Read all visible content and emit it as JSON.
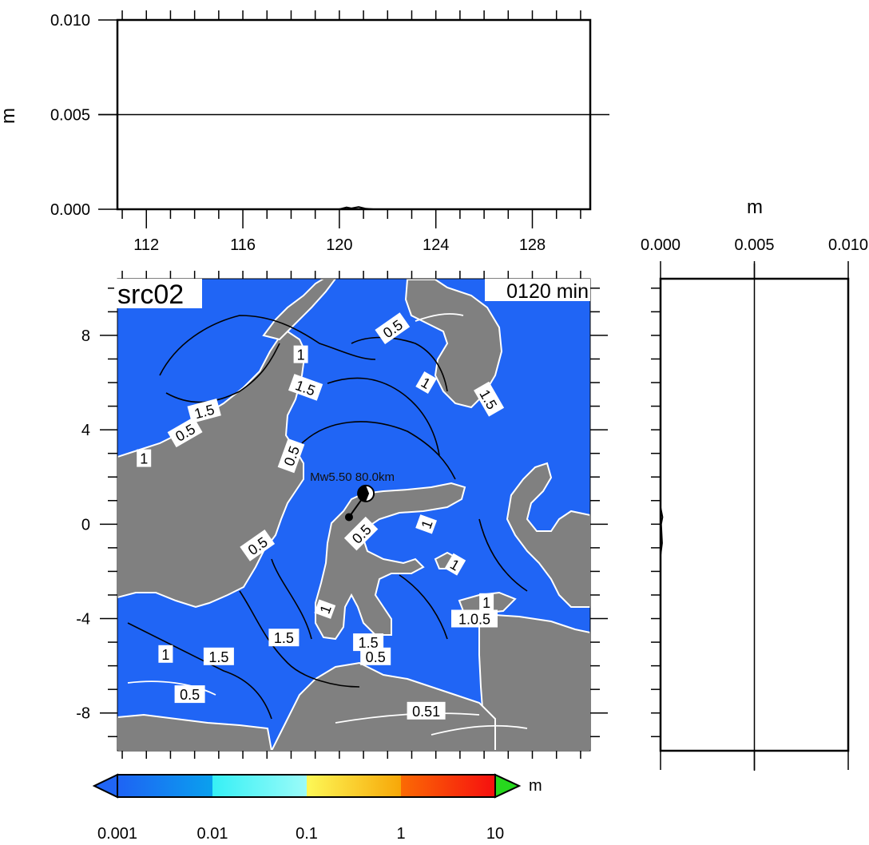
{
  "colors": {
    "ocean": "#2065F5",
    "land": "#808080",
    "contour": "#000000",
    "coast": "#FFFFFF",
    "cbar_stops": [
      "#1E63F4",
      "#0AA0EE",
      "#36F0F5",
      "#9BFBF9",
      "#FDF857",
      "#F7A708",
      "#FB6A04",
      "#F60F0F",
      "#27D81E"
    ]
  },
  "chart_data": [
    {
      "type": "line",
      "panel": "top-timeseries",
      "xlabel": "",
      "ylabel": "m",
      "xlim": [
        110.8,
        130.4
      ],
      "ylim": [
        0.0,
        0.01
      ],
      "x_ticks": [
        112,
        116,
        120,
        124,
        128
      ],
      "x_tick_labels": [
        "112",
        "116",
        "120",
        "124",
        "128"
      ],
      "y_ticks": [
        0.0,
        0.005,
        0.01
      ],
      "y_tick_labels": [
        "0.000",
        "0.005",
        "0.010"
      ],
      "series": [
        {
          "x": [
            110.8,
            120.0,
            120.3,
            120.5,
            120.8,
            121.1,
            121.4,
            130.4
          ],
          "y": [
            0.0,
            0.0,
            0.0001,
            5e-05,
            0.00012,
            3e-05,
            0.0,
            0.0
          ]
        }
      ],
      "grid": "horizontal line at 0.005"
    },
    {
      "type": "heatmap",
      "panel": "main-map",
      "title_left": "src02",
      "title_right": "0120 min",
      "xlim": [
        110.8,
        130.4
      ],
      "ylim": [
        -9.6,
        10.4
      ],
      "y_ticks": [
        8,
        4,
        0,
        -4,
        -8
      ],
      "y_tick_labels": [
        "8",
        "4",
        "0",
        "-4",
        "-8"
      ],
      "source_label": "Mw5.50  80.0km",
      "source_lon": 121.1,
      "source_lat": 1.3,
      "epicenter_lon": 120.4,
      "epicenter_lat": 0.3,
      "contour_labels": [
        {
          "text": "0.5",
          "lon": 122.2,
          "lat": 8.3,
          "angle": -35
        },
        {
          "text": "1",
          "lon": 118.4,
          "lat": 7.2,
          "angle": 0
        },
        {
          "text": "1.5",
          "lon": 118.6,
          "lat": 5.8,
          "angle": 20
        },
        {
          "text": "1",
          "lon": 123.6,
          "lat": 6.0,
          "angle": 30
        },
        {
          "text": "1.5",
          "lon": 126.2,
          "lat": 5.3,
          "angle": 60
        },
        {
          "text": "1.5",
          "lon": 114.4,
          "lat": 4.8,
          "angle": -15
        },
        {
          "text": "0.5",
          "lon": 113.6,
          "lat": 3.9,
          "angle": -30
        },
        {
          "text": "1",
          "lon": 111.9,
          "lat": 2.8,
          "angle": 0
        },
        {
          "text": "0.5",
          "lon": 118.0,
          "lat": 2.9,
          "angle": -70
        },
        {
          "text": "0.5",
          "lon": 120.9,
          "lat": -0.4,
          "angle": -45
        },
        {
          "text": "1",
          "lon": 123.6,
          "lat": 0.0,
          "angle": -70
        },
        {
          "text": "0.5",
          "lon": 116.6,
          "lat": -0.9,
          "angle": -35
        },
        {
          "text": "1",
          "lon": 124.8,
          "lat": -1.7,
          "angle": 30
        },
        {
          "text": "1",
          "lon": 119.4,
          "lat": -3.6,
          "angle": -70
        },
        {
          "text": "1.5",
          "lon": 117.7,
          "lat": -4.8,
          "angle": 0
        },
        {
          "text": "1",
          "lon": 126.1,
          "lat": -3.3,
          "angle": 0
        },
        {
          "text": "1.0.5",
          "lon": 125.6,
          "lat": -4.0,
          "angle": 0
        },
        {
          "text": "1.5",
          "lon": 121.2,
          "lat": -5.0,
          "angle": 0
        },
        {
          "text": "0.5",
          "lon": 121.5,
          "lat": -5.6,
          "angle": 0
        },
        {
          "text": "1",
          "lon": 112.8,
          "lat": -5.5,
          "angle": 0
        },
        {
          "text": "1.5",
          "lon": 115.0,
          "lat": -5.6,
          "angle": 0
        },
        {
          "text": "0.5",
          "lon": 113.8,
          "lat": -7.2,
          "angle": 0
        },
        {
          "text": "0.51",
          "lon": 123.6,
          "lat": -7.9,
          "angle": 0
        }
      ]
    },
    {
      "type": "line",
      "panel": "right-timeseries",
      "xlabel": "m",
      "ylabel": "",
      "xlim": [
        0.0,
        0.01
      ],
      "ylim": [
        -9.6,
        10.4
      ],
      "x_ticks": [
        0.0,
        0.005,
        0.01
      ],
      "x_tick_labels": [
        "0.000",
        "0.005",
        "0.010"
      ],
      "series": [
        {
          "x": [
            0.0,
            0.0,
            5e-05,
            0.0001,
            3e-05,
            8e-05,
            0.0,
            0.0
          ],
          "y": [
            10.4,
            0.7,
            0.5,
            0.3,
            0.0,
            -0.8,
            -1.3,
            -9.6
          ]
        }
      ],
      "grid": "vertical line at 0.005"
    },
    {
      "type": "colorbar",
      "panel": "colorbar",
      "unit": "m",
      "tick_labels": [
        "0.001",
        "0.01",
        "0.1",
        "1",
        "10"
      ],
      "scale": "log"
    }
  ]
}
